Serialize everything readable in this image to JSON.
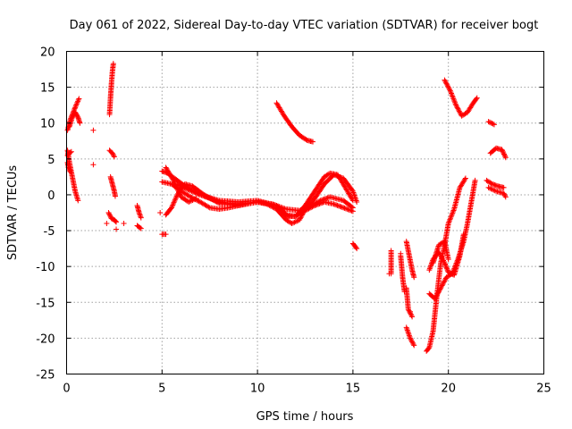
{
  "chart_data": {
    "type": "scatter",
    "title": "Day 061 of 2022, Sidereal Day-to-day VTEC variation (SDTVAR) for receiver bogt",
    "xlabel": "GPS time / hours",
    "ylabel": "SDTVAR / TECUs",
    "xlim": [
      0,
      25
    ],
    "ylim": [
      -25,
      20
    ],
    "xticks": [
      "0",
      "5",
      "10",
      "15",
      "20",
      "25"
    ],
    "yticks": [
      "-25",
      "-20",
      "-15",
      "-10",
      "-5",
      "0",
      "5",
      "10",
      "15",
      "20"
    ],
    "grid": true,
    "marker": "+",
    "marker_color": "#ff0000",
    "series": [
      {
        "tracks": [
          [
            [
              0.05,
              6.2
            ],
            [
              0.15,
              4.5
            ],
            [
              0.3,
              2.5
            ],
            [
              0.45,
              0.5
            ],
            [
              0.6,
              -0.8
            ]
          ],
          [
            [
              0.05,
              9.0
            ],
            [
              0.2,
              10.5
            ],
            [
              0.35,
              11.5
            ],
            [
              0.5,
              12.5
            ],
            [
              0.65,
              13.4
            ]
          ],
          [
            [
              0.15,
              9.5
            ],
            [
              0.3,
              10.8
            ],
            [
              0.45,
              11.5
            ],
            [
              0.6,
              10.8
            ],
            [
              0.7,
              10.0
            ]
          ],
          [
            [
              0.05,
              5.5
            ],
            [
              0.15,
              5.8
            ],
            [
              0.25,
              6.0
            ]
          ],
          [
            [
              0.05,
              4.5
            ],
            [
              0.1,
              3.8
            ],
            [
              0.2,
              3.2
            ]
          ],
          [
            [
              2.25,
              11.2
            ],
            [
              2.3,
              13.5
            ],
            [
              2.35,
              15.5
            ],
            [
              2.4,
              17.2
            ],
            [
              2.45,
              18.3
            ]
          ],
          [
            [
              2.25,
              6.2
            ],
            [
              2.4,
              5.8
            ],
            [
              2.5,
              5.3
            ]
          ],
          [
            [
              2.3,
              2.5
            ],
            [
              2.4,
              1.5
            ],
            [
              2.5,
              0.5
            ],
            [
              2.55,
              -0.2
            ]
          ],
          [
            [
              2.2,
              -2.5
            ],
            [
              2.35,
              -3.3
            ],
            [
              2.5,
              -3.5
            ],
            [
              2.6,
              -3.8
            ]
          ],
          [
            [
              3.7,
              -1.5
            ],
            [
              3.8,
              -2.5
            ],
            [
              3.9,
              -3.2
            ]
          ],
          [
            [
              3.7,
              -4.3
            ],
            [
              3.9,
              -4.7
            ]
          ],
          [
            [
              5.0,
              3.3
            ],
            [
              5.3,
              3.0
            ],
            [
              5.7,
              2.2
            ],
            [
              6.3,
              1.0
            ],
            [
              7.0,
              0.0
            ],
            [
              8.0,
              -1.0
            ],
            [
              9.0,
              -1.3
            ],
            [
              10.0,
              -1.0
            ],
            [
              10.8,
              -1.3
            ],
            [
              11.5,
              -2.0
            ],
            [
              12.2,
              -2.2
            ],
            [
              12.8,
              -1.5
            ],
            [
              13.3,
              -0.8
            ],
            [
              13.8,
              -0.3
            ],
            [
              14.5,
              -0.8
            ],
            [
              15.0,
              -1.8
            ]
          ],
          [
            [
              5.2,
              -2.8
            ],
            [
              5.5,
              -1.8
            ],
            [
              5.8,
              0.0
            ],
            [
              6.2,
              1.5
            ],
            [
              6.6,
              1.2
            ],
            [
              7.2,
              0.0
            ],
            [
              8.0,
              -1.2
            ],
            [
              9.0,
              -1.5
            ],
            [
              10.0,
              -1.0
            ],
            [
              11.0,
              -1.5
            ],
            [
              11.6,
              -3.0
            ],
            [
              12.0,
              -3.0
            ],
            [
              12.5,
              -2.2
            ],
            [
              13.0,
              -1.5
            ],
            [
              13.5,
              -1.0
            ],
            [
              14.0,
              -1.3
            ],
            [
              14.5,
              -1.8
            ],
            [
              15.0,
              -2.3
            ]
          ],
          [
            [
              5.0,
              1.8
            ],
            [
              5.5,
              1.5
            ],
            [
              6.0,
              0.5
            ],
            [
              6.5,
              -0.3
            ],
            [
              7.0,
              -1.0
            ],
            [
              7.5,
              -1.8
            ],
            [
              8.0,
              -2.0
            ],
            [
              8.5,
              -1.8
            ],
            [
              9.0,
              -1.5
            ],
            [
              10.0,
              -1.0
            ],
            [
              10.5,
              -1.3
            ],
            [
              11.0,
              -2.0
            ],
            [
              11.5,
              -3.5
            ],
            [
              11.8,
              -4.0
            ],
            [
              12.2,
              -3.5
            ],
            [
              12.5,
              -2.0
            ],
            [
              13.0,
              -0.5
            ],
            [
              13.5,
              1.5
            ],
            [
              14.0,
              2.8
            ],
            [
              14.5,
              2.3
            ],
            [
              15.0,
              0.5
            ],
            [
              15.2,
              -1.0
            ]
          ],
          [
            [
              5.8,
              1.5
            ],
            [
              6.3,
              0.8
            ],
            [
              7.0,
              0.0
            ],
            [
              8.0,
              -0.8
            ],
            [
              9.0,
              -1.0
            ],
            [
              10.0,
              -0.8
            ],
            [
              11.0,
              -1.5
            ],
            [
              11.5,
              -2.8
            ],
            [
              12.0,
              -3.0
            ],
            [
              12.5,
              -1.5
            ],
            [
              13.0,
              0.5
            ],
            [
              13.5,
              2.5
            ],
            [
              13.8,
              3.0
            ],
            [
              14.2,
              2.8
            ],
            [
              14.6,
              1.0
            ],
            [
              15.0,
              -0.8
            ]
          ],
          [
            [
              5.2,
              3.8
            ],
            [
              5.6,
              2.0
            ],
            [
              6.0,
              -0.3
            ],
            [
              6.4,
              -1.0
            ],
            [
              6.8,
              -0.5
            ]
          ],
          [
            [
              5.0,
              -5.5
            ],
            [
              5.2,
              -5.5
            ]
          ],
          [
            [
              11.0,
              12.8
            ],
            [
              11.4,
              11.0
            ],
            [
              11.8,
              9.5
            ],
            [
              12.2,
              8.3
            ],
            [
              12.6,
              7.6
            ],
            [
              12.9,
              7.4
            ]
          ],
          [
            [
              15.0,
              -6.8
            ],
            [
              15.2,
              -7.5
            ]
          ],
          [
            [
              17.0,
              -7.8
            ],
            [
              17.0,
              -11.0
            ]
          ],
          [
            [
              17.5,
              -8.5
            ],
            [
              17.6,
              -11.5
            ],
            [
              17.7,
              -13.5
            ]
          ],
          [
            [
              17.8,
              -13.0
            ],
            [
              17.9,
              -16.0
            ],
            [
              18.1,
              -17.0
            ]
          ],
          [
            [
              17.8,
              -6.5
            ],
            [
              17.95,
              -8.5
            ],
            [
              18.1,
              -10.5
            ],
            [
              18.2,
              -11.5
            ]
          ],
          [
            [
              17.8,
              -18.5
            ],
            [
              18.0,
              -20.0
            ],
            [
              18.2,
              -21.0
            ]
          ],
          [
            [
              18.85,
              -21.8
            ],
            [
              19.0,
              -21.3
            ],
            [
              19.2,
              -19.0
            ],
            [
              19.4,
              -14.0
            ],
            [
              19.6,
              -9.5
            ],
            [
              19.8,
              -7.0
            ],
            [
              20.0,
              -4.0
            ],
            [
              20.3,
              -2.0
            ],
            [
              20.6,
              1.0
            ],
            [
              20.9,
              2.3
            ]
          ],
          [
            [
              19.0,
              -13.8
            ],
            [
              19.3,
              -14.5
            ],
            [
              19.6,
              -13.0
            ],
            [
              19.9,
              -11.5
            ],
            [
              20.2,
              -11.0
            ],
            [
              20.5,
              -9.0
            ],
            [
              20.8,
              -6.5
            ],
            [
              21.0,
              -4.0
            ],
            [
              21.2,
              -1.0
            ],
            [
              21.4,
              2.0
            ]
          ],
          [
            [
              19.0,
              -10.5
            ],
            [
              19.2,
              -9.0
            ],
            [
              19.5,
              -8.0
            ],
            [
              19.8,
              -9.5
            ],
            [
              20.0,
              -10.8
            ],
            [
              20.3,
              -11.2
            ],
            [
              20.6,
              -8.5
            ],
            [
              20.8,
              -5.5
            ]
          ],
          [
            [
              19.2,
              -9.5
            ],
            [
              19.5,
              -7.0
            ],
            [
              19.8,
              -6.5
            ],
            [
              20.0,
              -9.0
            ]
          ],
          [
            [
              19.8,
              16.0
            ],
            [
              20.1,
              14.5
            ],
            [
              20.4,
              12.5
            ],
            [
              20.7,
              11.0
            ],
            [
              21.0,
              11.5
            ],
            [
              21.3,
              12.8
            ],
            [
              21.5,
              13.5
            ]
          ],
          [
            [
              22.1,
              10.2
            ],
            [
              22.4,
              9.8
            ]
          ],
          [
            [
              22.2,
              5.8
            ],
            [
              22.5,
              6.5
            ],
            [
              22.8,
              6.3
            ],
            [
              23.0,
              5.2
            ]
          ],
          [
            [
              22.0,
              2.0
            ],
            [
              22.3,
              1.5
            ],
            [
              22.6,
              1.2
            ],
            [
              22.9,
              1.0
            ]
          ],
          [
            [
              22.1,
              1.0
            ],
            [
              22.5,
              0.5
            ],
            [
              22.9,
              0.2
            ],
            [
              23.0,
              -0.3
            ]
          ]
        ],
        "isolated": [
          [
            1.4,
            9.0
          ],
          [
            1.4,
            4.2
          ],
          [
            2.1,
            -4.0
          ],
          [
            2.6,
            -4.8
          ],
          [
            3.0,
            -4.0
          ],
          [
            4.9,
            -2.5
          ],
          [
            16.9,
            -11.0
          ],
          [
            17.5,
            -8.2
          ],
          [
            18.0,
            -16.3
          ]
        ]
      }
    ]
  }
}
